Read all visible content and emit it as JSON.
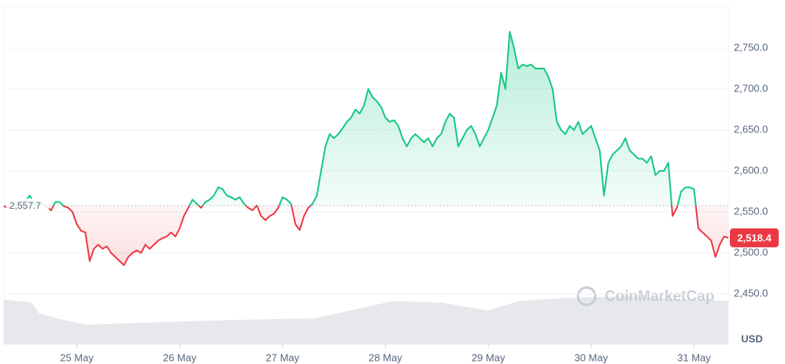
{
  "chart_data": {
    "type": "line",
    "values": [
      2557,
      2555,
      2558,
      2560,
      2562,
      2563,
      2570,
      2560,
      2558,
      2560,
      2556,
      2552,
      2562,
      2562,
      2557,
      2555,
      2550,
      2535,
      2527,
      2525,
      2490,
      2505,
      2510,
      2505,
      2508,
      2500,
      2495,
      2490,
      2485,
      2495,
      2500,
      2503,
      2500,
      2510,
      2505,
      2510,
      2515,
      2518,
      2520,
      2525,
      2520,
      2530,
      2545,
      2555,
      2565,
      2560,
      2555,
      2562,
      2565,
      2570,
      2580,
      2578,
      2570,
      2568,
      2565,
      2568,
      2560,
      2555,
      2552,
      2558,
      2545,
      2540,
      2545,
      2548,
      2555,
      2568,
      2565,
      2560,
      2535,
      2528,
      2545,
      2555,
      2560,
      2570,
      2600,
      2630,
      2645,
      2640,
      2645,
      2652,
      2660,
      2665,
      2675,
      2670,
      2680,
      2700,
      2690,
      2685,
      2678,
      2665,
      2660,
      2662,
      2655,
      2640,
      2630,
      2640,
      2645,
      2640,
      2635,
      2640,
      2630,
      2640,
      2645,
      2660,
      2670,
      2665,
      2630,
      2640,
      2650,
      2655,
      2645,
      2630,
      2640,
      2650,
      2665,
      2680,
      2720,
      2700,
      2770,
      2750,
      2725,
      2730,
      2728,
      2730,
      2725,
      2725,
      2725,
      2715,
      2700,
      2660,
      2650,
      2645,
      2655,
      2650,
      2660,
      2645,
      2650,
      2655,
      2640,
      2625,
      2570,
      2610,
      2620,
      2625,
      2630,
      2640,
      2625,
      2620,
      2615,
      2615,
      2610,
      2618,
      2595,
      2600,
      2600,
      2610,
      2545,
      2555,
      2575,
      2580,
      2580,
      2578,
      2530,
      2525,
      2520,
      2515,
      2495,
      2510,
      2520,
      2518.4
    ],
    "last_label": "2,518.4",
    "baseline": {
      "value": 2557.7,
      "label": "2,557.7"
    },
    "colors": {
      "up": "#16c784",
      "down": "#ea3943"
    },
    "xlim": [
      0,
      169
    ],
    "xticks": [
      {
        "value": 17,
        "label": "25 May"
      },
      {
        "value": 41,
        "label": "26 May"
      },
      {
        "value": 65,
        "label": "27 May"
      },
      {
        "value": 89,
        "label": "28 May"
      },
      {
        "value": 113,
        "label": "29 May"
      },
      {
        "value": 137,
        "label": "30 May"
      },
      {
        "value": 161,
        "label": "31 May"
      }
    ],
    "ylim": [
      2400,
      2800
    ],
    "yticks": [
      {
        "value": 2450,
        "label": "2,450.0"
      },
      {
        "value": 2500,
        "label": "2,500.0"
      },
      {
        "value": 2550,
        "label": "2,550.0"
      },
      {
        "value": 2600,
        "label": "2,600.0"
      },
      {
        "value": 2650,
        "label": "2,650.0"
      },
      {
        "value": 2700,
        "label": "2,700.0"
      },
      {
        "value": 2750,
        "label": "2,750.0"
      }
    ],
    "grid": true,
    "unit": "USD",
    "watermark": "CoinMarketCap"
  }
}
